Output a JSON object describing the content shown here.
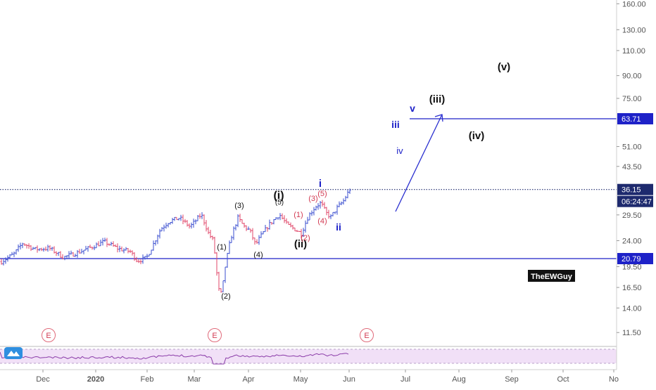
{
  "chart_data": {
    "type": "candlestick",
    "scale": "log",
    "y_ticks": [
      "160.00",
      "130.00",
      "110.00",
      "90.00",
      "75.00",
      "63.71",
      "51.00",
      "43.50",
      "36.15",
      "29.50",
      "24.00",
      "20.79",
      "19.50",
      "16.50",
      "14.00",
      "11.50"
    ],
    "x_ticks": [
      "Dec",
      "2020",
      "Feb",
      "Mar",
      "Apr",
      "May",
      "Jun",
      "Jul",
      "Aug",
      "Sep",
      "Oct",
      "No"
    ],
    "price_labels": [
      {
        "text": "63.71",
        "color": "#1e22c8"
      },
      {
        "text": "36.15",
        "color": "#1e2a6e"
      },
      {
        "text": "06:24:47",
        "color": "#1e2a6e"
      },
      {
        "text": "20.79",
        "color": "#1e22c8"
      }
    ],
    "horizontal_lines": [
      {
        "price": 63.71,
        "color": "#1e22c8",
        "style": "solid"
      },
      {
        "price": 36.15,
        "color": "#1e2a6e",
        "style": "dotted"
      },
      {
        "price": 20.79,
        "color": "#1e22c8",
        "style": "solid"
      }
    ],
    "wave_labels": [
      {
        "text": "(1)",
        "color": "#111111"
      },
      {
        "text": "(2)",
        "color": "#111111"
      },
      {
        "text": "(3)",
        "color": "#111111"
      },
      {
        "text": "(4)",
        "color": "#111111"
      },
      {
        "text": "(5)",
        "color": "#111111"
      },
      {
        "text": "(i)",
        "color": "#111111"
      },
      {
        "text": "(ii)",
        "color": "#111111"
      },
      {
        "text": "(1)",
        "color": "#d23a52"
      },
      {
        "text": "(2)",
        "color": "#d23a52"
      },
      {
        "text": "(3)",
        "color": "#d23a52"
      },
      {
        "text": "(4)",
        "color": "#d23a52"
      },
      {
        "text": "(5)",
        "color": "#d23a52"
      },
      {
        "text": "i",
        "color": "#1e22c8"
      },
      {
        "text": "ii",
        "color": "#1e22c8"
      },
      {
        "text": "iii",
        "color": "#1e22c8"
      },
      {
        "text": "iv",
        "color": "#1e22c8"
      },
      {
        "text": "v",
        "color": "#1e22c8"
      },
      {
        "text": "(iii)",
        "color": "#111111"
      },
      {
        "text": "(iv)",
        "color": "#111111"
      },
      {
        "text": "(v)",
        "color": "#111111"
      }
    ],
    "earnings_markers": [
      "E",
      "E",
      "E"
    ],
    "watermark": "TheEWGuy",
    "bar_colors": {
      "up": "#3a4ecf",
      "down": "#e0476a"
    }
  }
}
